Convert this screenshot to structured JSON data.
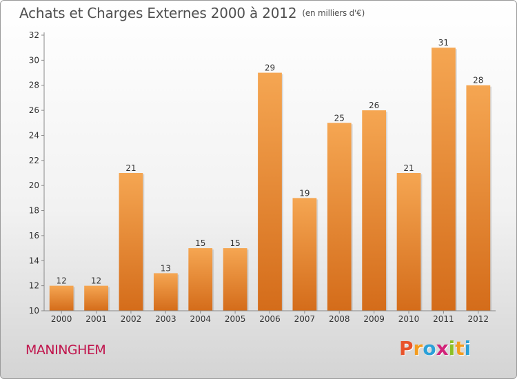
{
  "header": {
    "title": "Achats et Charges Externes 2000 à 2012",
    "unit": "(en milliers d'€)"
  },
  "footer": {
    "commune": "MANINGHEM",
    "logo": {
      "letters": [
        "P",
        "r",
        "o",
        "x",
        "i",
        "t",
        "i"
      ],
      "colors": [
        "#e8532b",
        "#f39c1f",
        "#2aa0d8",
        "#d2237a",
        "#8cbf26",
        "#f39c1f",
        "#2aa0d8"
      ]
    }
  },
  "chart_data": {
    "type": "bar",
    "title": "Achats et Charges Externes 2000 à 2012",
    "subtitle": "(en milliers d'€)",
    "xlabel": "",
    "ylabel": "",
    "categories": [
      "2000",
      "2001",
      "2002",
      "2003",
      "2004",
      "2005",
      "2006",
      "2007",
      "2008",
      "2009",
      "2010",
      "2011",
      "2012"
    ],
    "values": [
      12,
      12,
      21,
      13,
      15,
      15,
      29,
      19,
      25,
      26,
      21,
      31,
      28
    ],
    "ylim": [
      10,
      32
    ],
    "yticks": [
      10,
      12,
      14,
      16,
      18,
      20,
      22,
      24,
      26,
      28,
      30,
      32
    ],
    "grid": false,
    "legend": "none",
    "colors": {
      "bar_top": "#f5a652",
      "bar_bottom": "#d46c1a",
      "axis": "#888888",
      "text": "#333333"
    }
  }
}
